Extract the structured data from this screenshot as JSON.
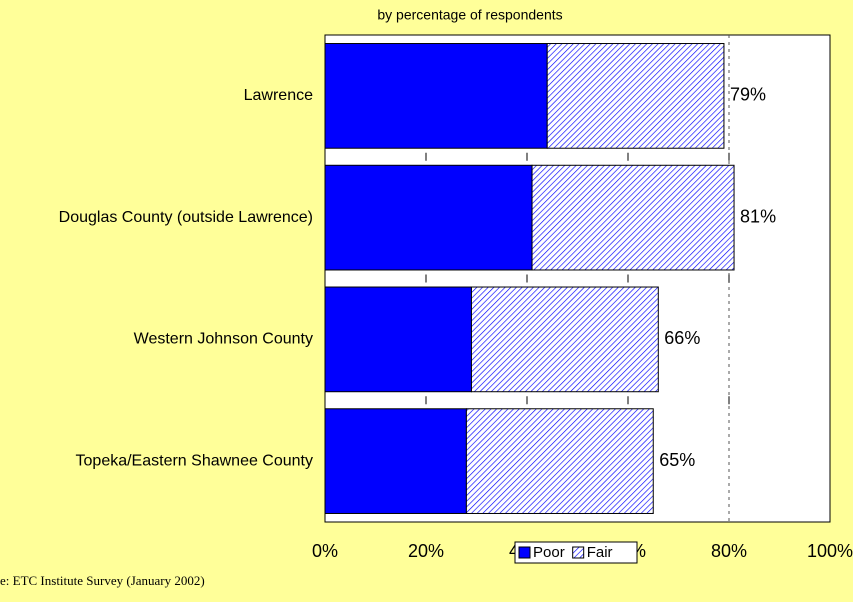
{
  "chart_data": {
    "type": "stacked-barh",
    "subtitle": "by percentage of respondents",
    "categories": [
      "Lawrence",
      "Douglas County (outside Lawrence)",
      "Western Johnson County",
      "Topeka/Eastern Shawnee County"
    ],
    "series": [
      {
        "name": "Poor",
        "color": "#0000ff",
        "values": [
          44,
          41,
          29,
          28
        ]
      },
      {
        "name": "Fair",
        "color": "#0000ff",
        "pattern": "hatch",
        "values": [
          35,
          40,
          37,
          37
        ]
      }
    ],
    "totals": [
      79,
      81,
      66,
      65
    ],
    "total_labels": [
      "79%",
      "81%",
      "66%",
      "65%"
    ],
    "xlim": [
      0,
      100
    ],
    "xticks": [
      {
        "value": 0,
        "label": "0%"
      },
      {
        "value": 20,
        "label": "20%"
      },
      {
        "value": 40,
        "label": "40%"
      },
      {
        "value": 60,
        "label": "60%"
      },
      {
        "value": 80,
        "label": "80%"
      },
      {
        "value": 100,
        "label": "100%"
      }
    ],
    "reference_line": 80,
    "legend": "bottom",
    "source": "e:  ETC Institute Survey (January 2002)"
  }
}
